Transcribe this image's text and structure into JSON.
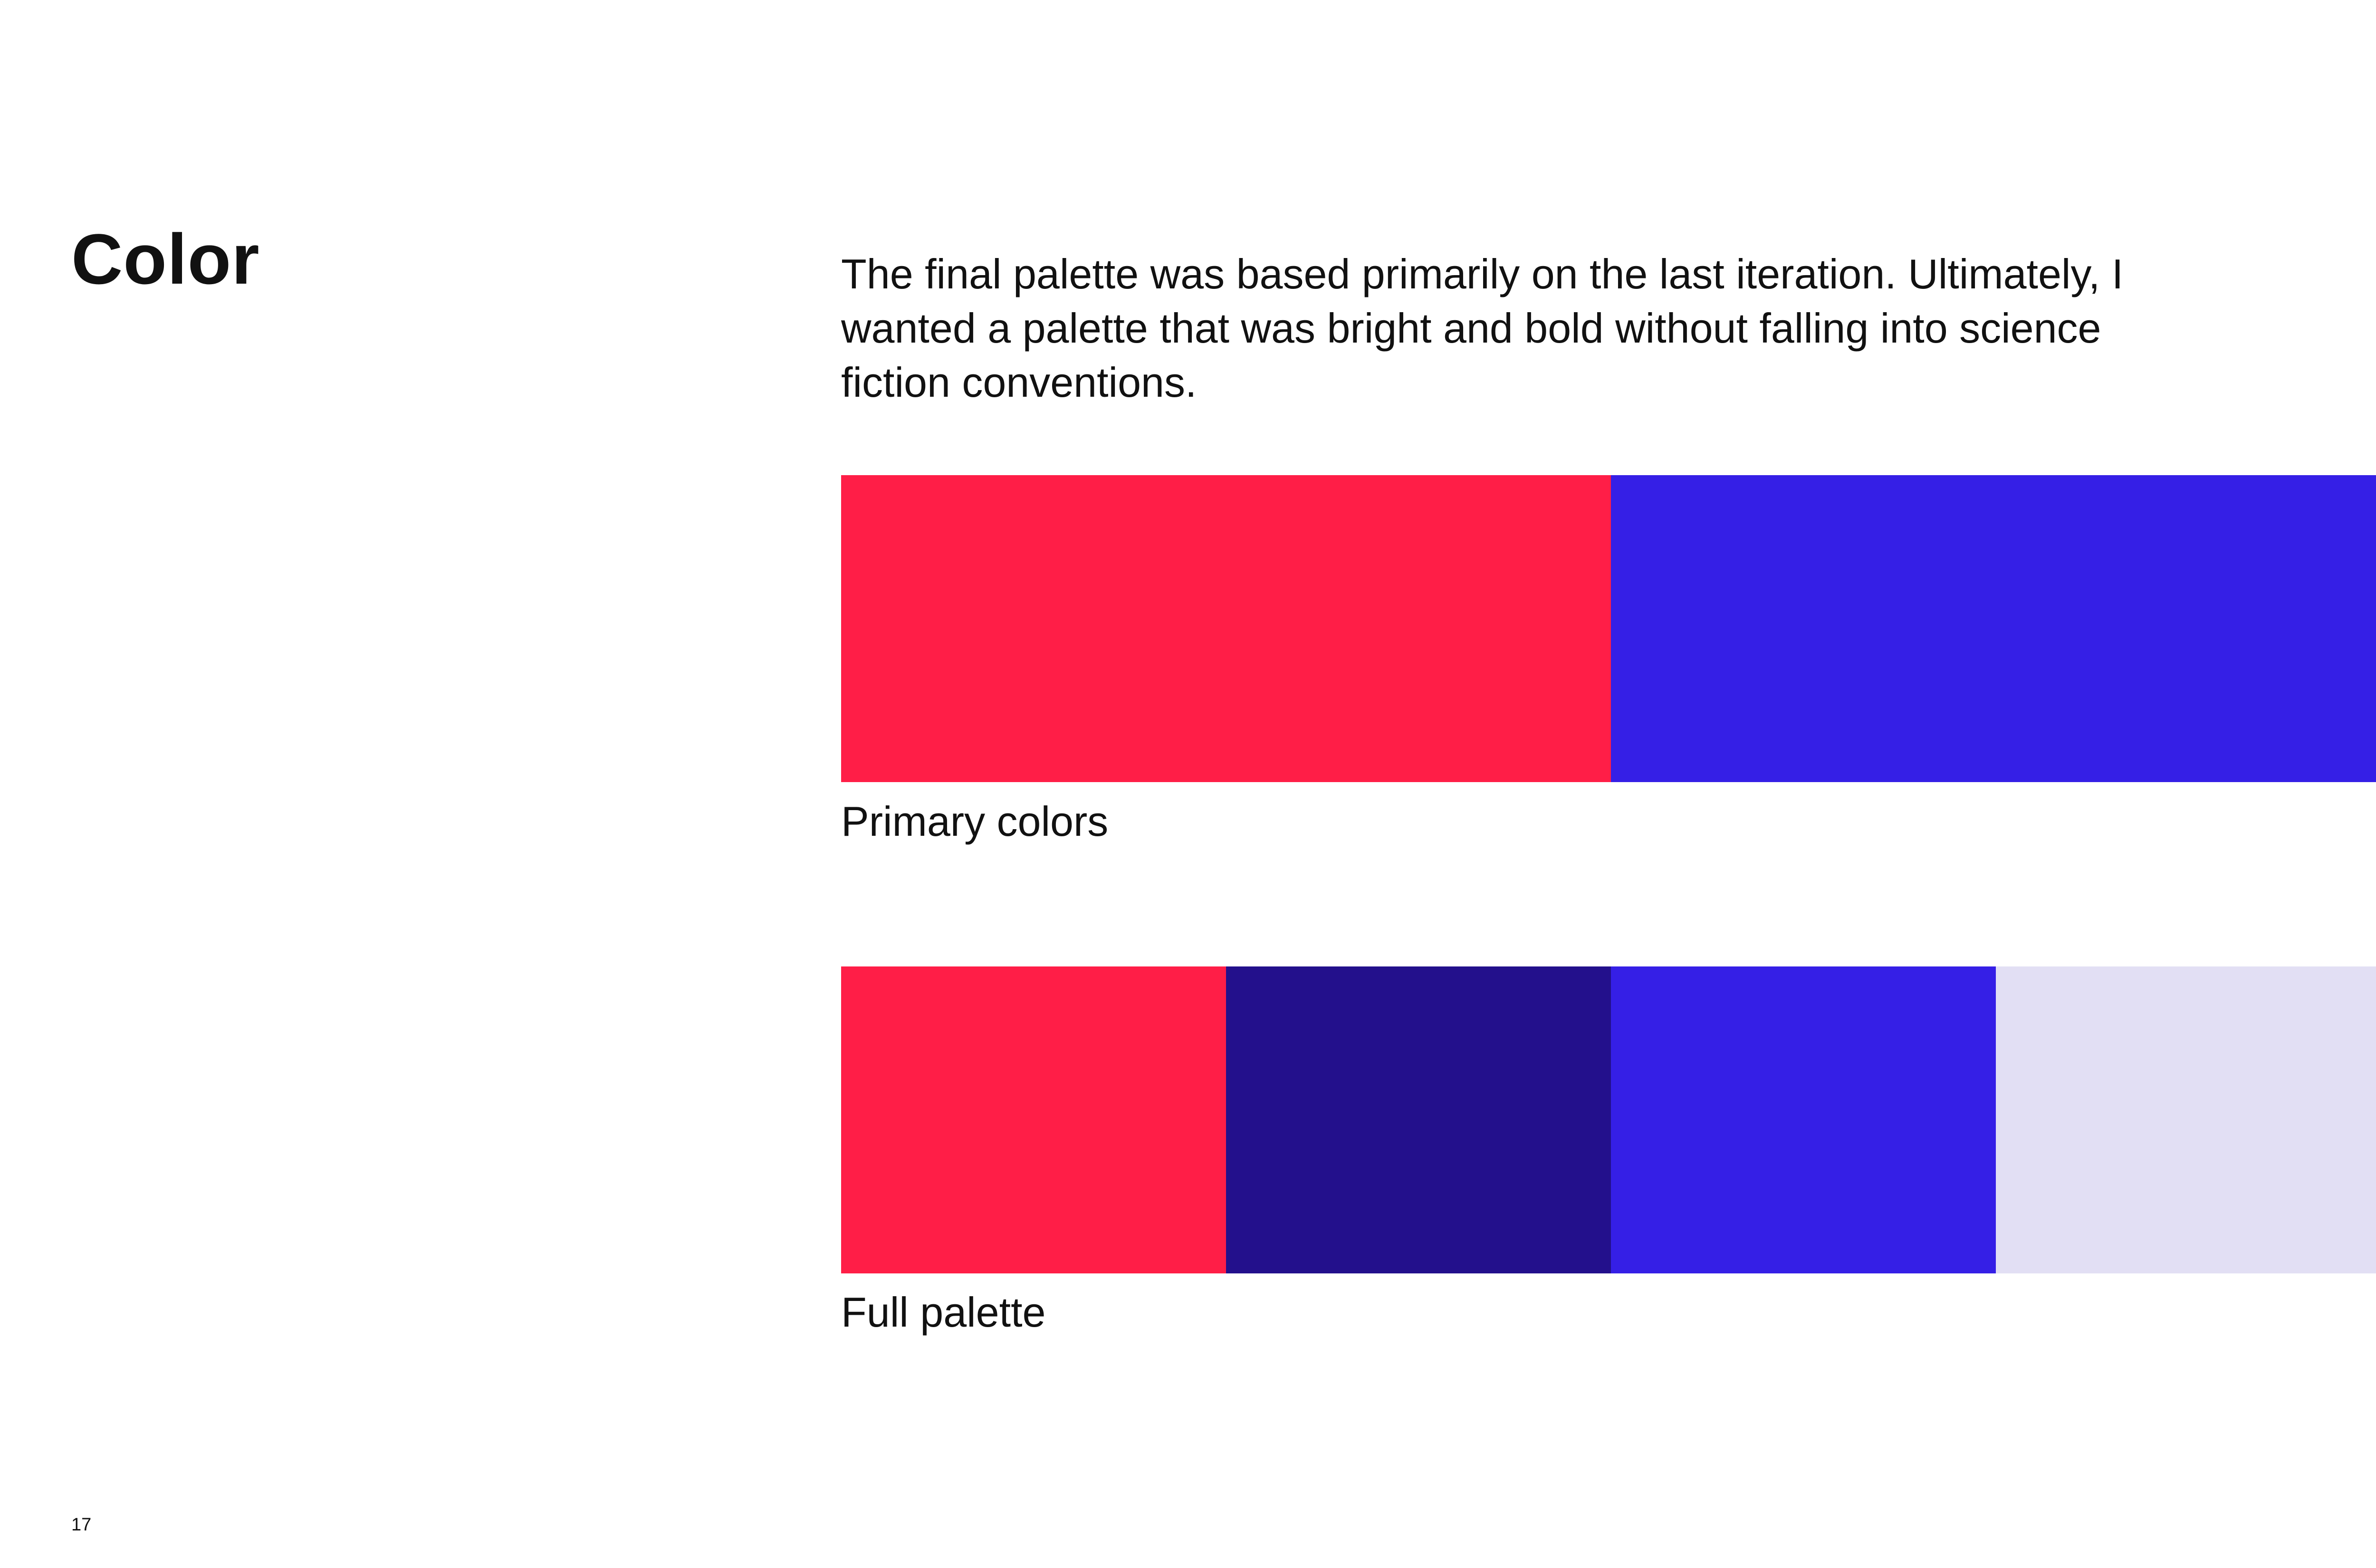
{
  "page": {
    "title": "Color",
    "intro": "The final palette was based primarily on the last iteration. Ultimately, I wanted a palette that was bright and bold without falling into science fiction conventions.",
    "page_number": "17"
  },
  "primary": {
    "caption": "Primary colors",
    "swatches": [
      "#FF1E47",
      "#351FE6"
    ]
  },
  "full": {
    "caption": "Full palette",
    "swatches": [
      "#FF1E47",
      "#23108C",
      "#351FE6",
      "#E2DFF4"
    ]
  }
}
